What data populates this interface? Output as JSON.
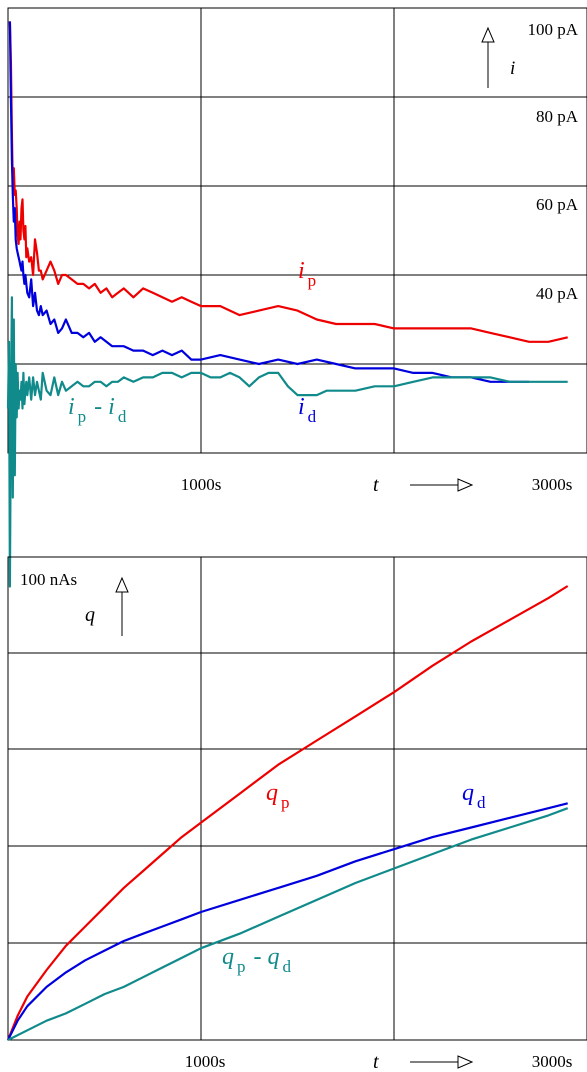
{
  "colors": {
    "red": "#ee0000",
    "blue": "#0000dd",
    "teal": "#108a8a",
    "grid": "#000000"
  },
  "chart_data": [
    {
      "type": "line",
      "xlim": [
        0,
        3000
      ],
      "ylim": [
        0,
        100
      ],
      "x_tick_labels": [
        "1000s",
        "3000s"
      ],
      "y_tick_labels": [
        "100 pA",
        "80 pA",
        "60 pA",
        "40 pA"
      ],
      "axis_symbol_x": "t",
      "axis_symbol_y": "i",
      "grid": true,
      "series": [
        {
          "name": "i_p",
          "label_main": "i",
          "label_sub": "p",
          "color": "red",
          "x": [
            10,
            15,
            20,
            25,
            30,
            35,
            40,
            45,
            50,
            55,
            60,
            65,
            70,
            75,
            80,
            85,
            90,
            95,
            100,
            110,
            120,
            130,
            140,
            150,
            160,
            170,
            180,
            200,
            220,
            240,
            260,
            280,
            300,
            330,
            360,
            390,
            420,
            450,
            480,
            510,
            540,
            570,
            600,
            650,
            700,
            750,
            800,
            850,
            900,
            950,
            1000,
            1100,
            1200,
            1300,
            1400,
            1500,
            1600,
            1700,
            1800,
            1900,
            2000,
            2100,
            2200,
            2300,
            2400,
            2500,
            2600,
            2700,
            2800,
            2900
          ],
          "y": [
            97,
            88,
            72,
            60,
            64,
            58,
            59,
            55,
            49,
            47,
            52,
            48,
            55,
            57,
            50,
            48,
            51,
            44,
            46,
            43,
            44,
            40,
            48,
            45,
            41,
            41,
            39,
            41,
            43,
            41,
            38,
            40,
            40,
            39,
            38,
            38,
            37,
            38,
            36,
            37,
            35,
            36,
            37,
            35,
            37,
            36,
            35,
            34,
            35,
            34,
            33,
            33,
            31,
            32,
            33,
            32,
            30,
            29,
            29,
            29,
            28,
            28,
            28,
            28,
            28,
            27,
            26,
            25,
            25,
            26
          ]
        },
        {
          "name": "i_d",
          "label_main": "i",
          "label_sub": "d",
          "color": "blue",
          "x": [
            10,
            15,
            20,
            25,
            30,
            35,
            40,
            45,
            50,
            55,
            60,
            65,
            70,
            75,
            80,
            85,
            90,
            95,
            100,
            110,
            120,
            130,
            140,
            150,
            160,
            170,
            180,
            200,
            220,
            240,
            260,
            280,
            300,
            330,
            360,
            390,
            420,
            450,
            480,
            510,
            540,
            570,
            600,
            650,
            700,
            750,
            800,
            850,
            900,
            950,
            1000,
            1100,
            1200,
            1300,
            1400,
            1500,
            1600,
            1700,
            1800,
            1900,
            2000,
            2100,
            2200,
            2300,
            2400,
            2500,
            2600,
            2700
          ],
          "y": [
            97,
            80,
            66,
            58,
            52,
            55,
            48,
            46,
            45,
            44,
            43,
            42,
            41,
            43,
            40,
            38,
            40,
            38,
            36,
            35,
            39,
            33,
            36,
            32,
            31,
            33,
            31,
            32,
            29,
            30,
            27,
            28,
            30,
            27,
            27,
            26,
            27,
            25,
            26,
            25,
            24,
            24,
            24,
            23,
            23,
            22,
            23,
            22,
            23,
            21,
            21,
            22,
            21,
            20,
            21,
            20,
            21,
            20,
            19,
            19,
            19,
            18,
            18,
            17,
            17,
            16,
            16,
            16
          ]
        },
        {
          "name": "i_p - i_d",
          "label_main": "i",
          "label_sub": "p",
          "label_mid": " - i",
          "label_sub2": "d",
          "color": "teal",
          "x": [
            0,
            5,
            10,
            15,
            20,
            25,
            30,
            35,
            40,
            45,
            50,
            55,
            60,
            65,
            70,
            75,
            80,
            85,
            90,
            95,
            100,
            110,
            120,
            130,
            140,
            150,
            160,
            170,
            180,
            200,
            220,
            240,
            260,
            280,
            300,
            330,
            360,
            390,
            420,
            450,
            480,
            510,
            540,
            570,
            600,
            650,
            700,
            750,
            800,
            850,
            900,
            950,
            1000,
            1050,
            1100,
            1150,
            1200,
            1250,
            1300,
            1350,
            1400,
            1450,
            1500,
            1550,
            1600,
            1650,
            1700,
            1750,
            1800,
            1900,
            2000,
            2100,
            2200,
            2300,
            2400,
            2500,
            2600,
            2700,
            2800,
            2900
          ],
          "y": [
            10,
            25,
            -30,
            10,
            35,
            -10,
            30,
            -5,
            20,
            8,
            18,
            10,
            14,
            12,
            16,
            10,
            18,
            11,
            14,
            16,
            13,
            17,
            12,
            17,
            13,
            16,
            14,
            12,
            18,
            14,
            13,
            17,
            13,
            16,
            14,
            15,
            16,
            15,
            15,
            16,
            16,
            15,
            16,
            16,
            17,
            16,
            17,
            17,
            18,
            18,
            17,
            18,
            18,
            17,
            17,
            18,
            17,
            15,
            17,
            18,
            18,
            15,
            13,
            13,
            13,
            14,
            14,
            14,
            14,
            15,
            15,
            16,
            17,
            17,
            17,
            17,
            16,
            16,
            16,
            16
          ]
        }
      ]
    },
    {
      "type": "line",
      "xlim": [
        0,
        3000
      ],
      "ylim": [
        0,
        100
      ],
      "x_tick_labels": [
        "1000s",
        "3000s"
      ],
      "y_tick_labels": [
        "100 nAs"
      ],
      "axis_symbol_x": "t",
      "axis_symbol_y": "q",
      "grid": true,
      "series": [
        {
          "name": "q_p",
          "label_main": "q",
          "label_sub": "p",
          "color": "red",
          "x": [
            0,
            50,
            100,
            200,
            300,
            400,
            500,
            600,
            700,
            800,
            900,
            1000,
            1200,
            1400,
            1600,
            1800,
            2000,
            2200,
            2400,
            2600,
            2800,
            2900
          ],
          "y": [
            0,
            5,
            9,
            14.5,
            19.5,
            23.5,
            27.5,
            31.5,
            35,
            38.5,
            42,
            45,
            51,
            57,
            62,
            67,
            72,
            77.5,
            82.5,
            87,
            91.5,
            94
          ]
        },
        {
          "name": "q_d",
          "label_main": "q",
          "label_sub": "d",
          "color": "blue",
          "x": [
            0,
            50,
            100,
            200,
            300,
            400,
            500,
            600,
            700,
            800,
            900,
            1000,
            1200,
            1400,
            1600,
            1800,
            2000,
            2200,
            2400,
            2600,
            2800,
            2900
          ],
          "y": [
            0,
            4,
            7,
            11,
            14,
            16.5,
            18.5,
            20.5,
            22,
            23.5,
            25,
            26.5,
            29,
            31.5,
            34,
            37,
            39.5,
            42,
            44,
            46,
            48,
            49
          ]
        },
        {
          "name": "q_p - q_d",
          "label_main": "q",
          "label_sub": "p",
          "label_mid": " - q",
          "label_sub2": "d",
          "color": "teal",
          "x": [
            0,
            100,
            200,
            300,
            400,
            500,
            600,
            700,
            800,
            900,
            1000,
            1200,
            1400,
            1600,
            1800,
            2000,
            2200,
            2400,
            2600,
            2800,
            2900
          ],
          "y": [
            0,
            2,
            4,
            5.5,
            7.5,
            9.5,
            11,
            13,
            15,
            17,
            19,
            22,
            25.5,
            29,
            32.5,
            35.5,
            38.5,
            41.5,
            44,
            46.5,
            48
          ]
        }
      ]
    }
  ]
}
